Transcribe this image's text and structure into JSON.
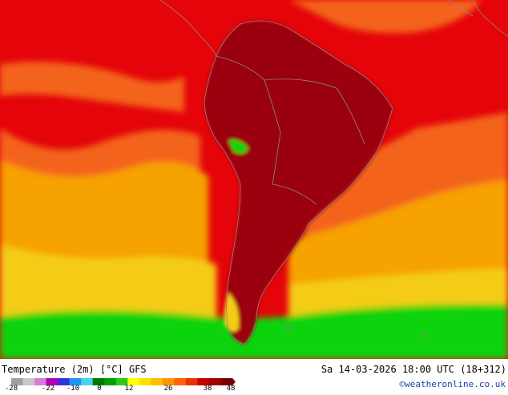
{
  "map": {
    "title": "Temperature (2m) [°C] GFS",
    "valid_time": "Sa 14-03-2026 18:00 UTC (18+312)",
    "credit": "©weatheronline.co.uk",
    "region": "South America",
    "legend": {
      "unit": "°C",
      "ticks": [
        "-28",
        "-22",
        "-10",
        "0",
        "12",
        "26",
        "38",
        "48"
      ],
      "colors": [
        "#a0a0a0",
        "#c8c8c8",
        "#dc78dc",
        "#b400b4",
        "#3232dc",
        "#1e96f0",
        "#46d2f0",
        "#007800",
        "#00a000",
        "#2dc814",
        "#ffff00",
        "#ffe100",
        "#ffbe00",
        "#ff9600",
        "#ff6400",
        "#e63200",
        "#c80000",
        "#a00000",
        "#780000"
      ]
    },
    "colors": {
      "water_hot": "#e4040a",
      "water_warm": "#f4641a",
      "water_mild": "#f6a200",
      "water_cool": "#f4cc16",
      "water_cold": "#0ed30e",
      "land_hot": "#9a0010",
      "coastline": "#8a8a8a"
    }
  }
}
